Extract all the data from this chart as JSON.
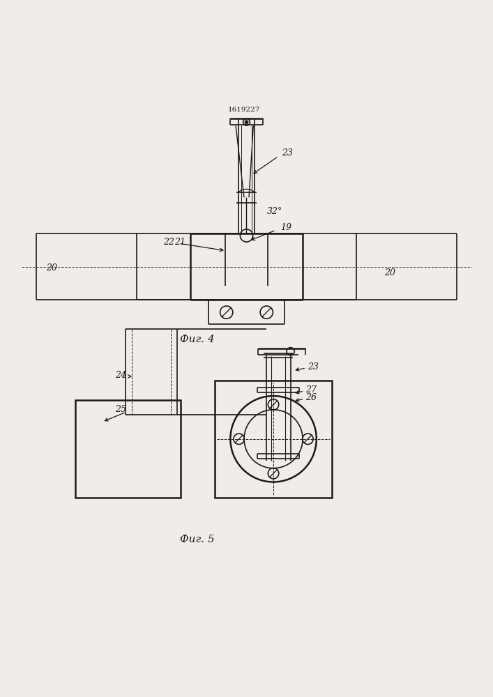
{
  "bg_color": "#f0ede8",
  "line_color": "#1a1a1a",
  "line_width": 1.2,
  "fig4_caption": "Фиг. 4",
  "fig5_caption": "Фиг. 5",
  "patent_number": "1619227"
}
